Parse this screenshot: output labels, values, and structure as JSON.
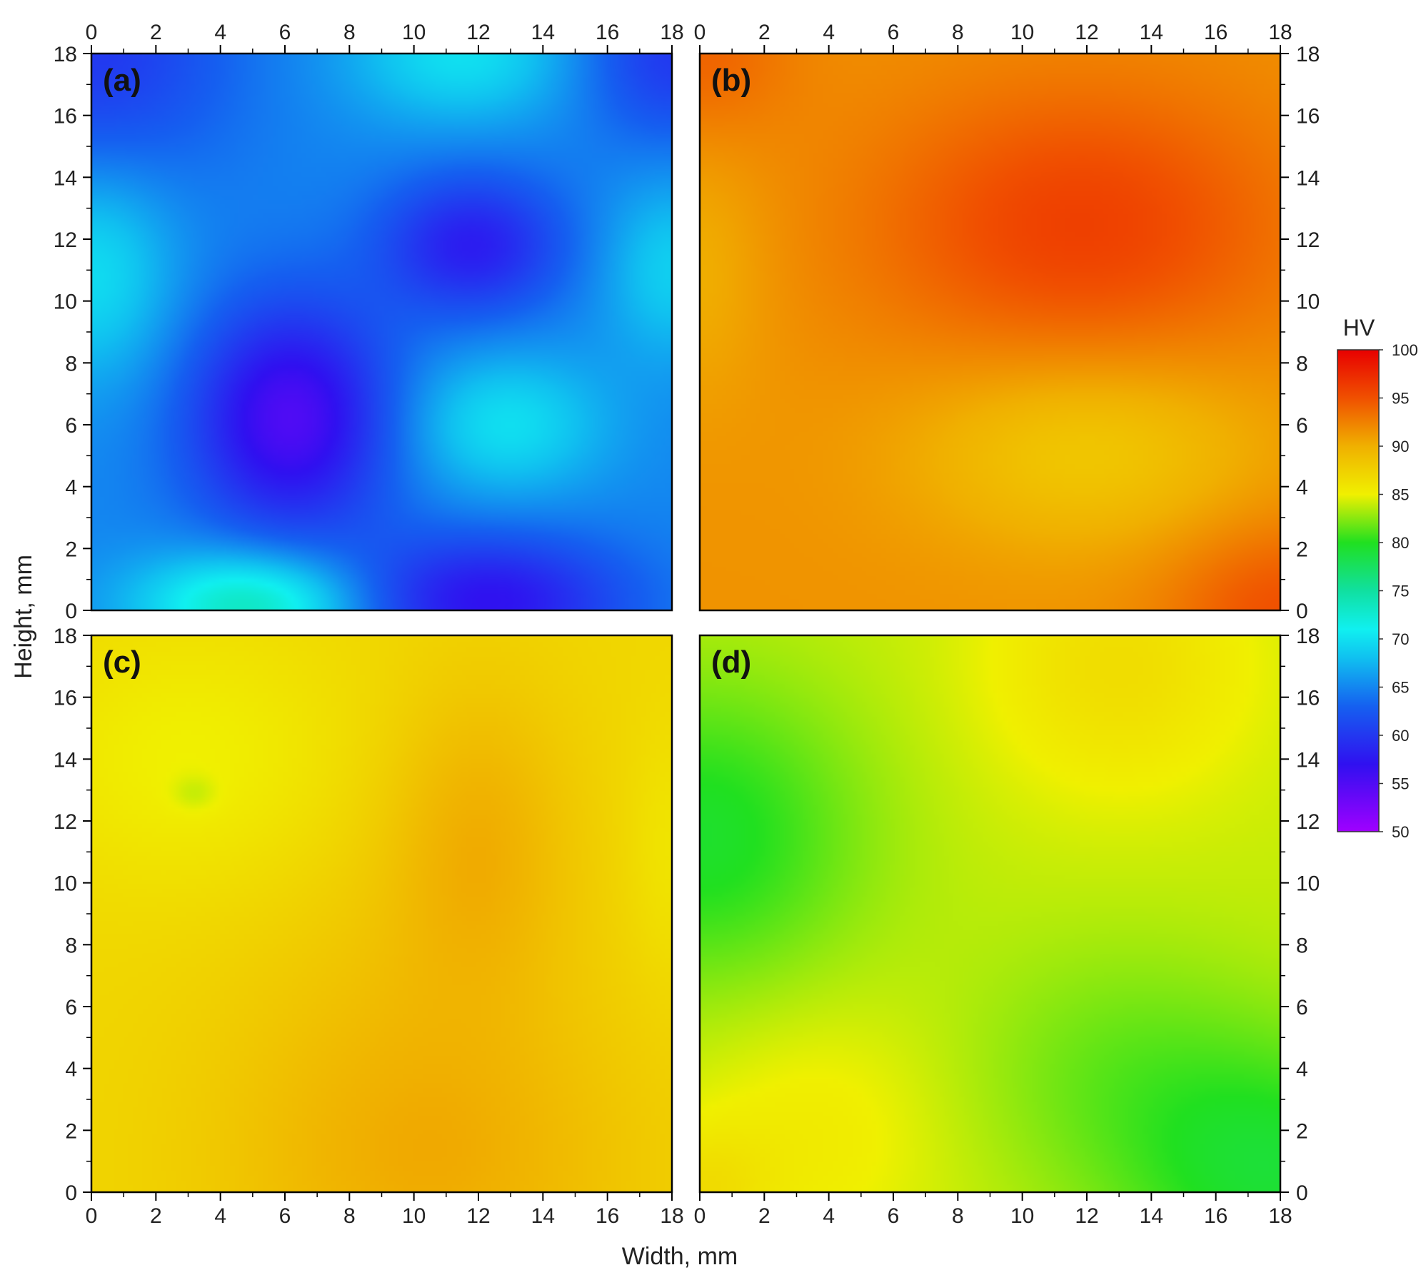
{
  "chart_data": {
    "type": "heatmap",
    "xlabel": "Width, mm",
    "ylabel": "Height, mm",
    "xlim": [
      0,
      18
    ],
    "ylim": [
      0,
      18
    ],
    "x_ticks": [
      0,
      2,
      4,
      6,
      8,
      10,
      12,
      14,
      16,
      18
    ],
    "y_ticks": [
      0,
      2,
      4,
      6,
      8,
      10,
      12,
      14,
      16,
      18
    ],
    "colorbar": {
      "title": "HV",
      "range": [
        50,
        100
      ],
      "ticks": [
        50,
        55,
        60,
        65,
        70,
        75,
        80,
        85,
        90,
        95,
        100
      ],
      "colors": [
        {
          "value": 50,
          "color": "#a000ff"
        },
        {
          "value": 57,
          "color": "#3010f0"
        },
        {
          "value": 63,
          "color": "#1560f0"
        },
        {
          "value": 68,
          "color": "#10c0f0"
        },
        {
          "value": 71,
          "color": "#10f0f0"
        },
        {
          "value": 75,
          "color": "#10e0a0"
        },
        {
          "value": 80,
          "color": "#20e020"
        },
        {
          "value": 85,
          "color": "#f0f000"
        },
        {
          "value": 90,
          "color": "#f0b000"
        },
        {
          "value": 95,
          "color": "#f05000"
        },
        {
          "value": 100,
          "color": "#e80000"
        }
      ]
    },
    "panels": [
      {
        "label": "(a)",
        "base": 65,
        "features": [
          {
            "x": 6.2,
            "y": 6.2,
            "amp": -10,
            "sx": 2.2,
            "sy": 2.6
          },
          {
            "x": 11.8,
            "y": 11.8,
            "amp": -7,
            "sx": 2.0,
            "sy": 1.6
          },
          {
            "x": 12.2,
            "y": 0.3,
            "amp": -8,
            "sx": 3.0,
            "sy": 1.5
          },
          {
            "x": 0,
            "y": 18,
            "amp": -5,
            "sx": 3.0,
            "sy": 3.0
          },
          {
            "x": 18,
            "y": 18,
            "amp": -5,
            "sx": 2.0,
            "sy": 2.0
          },
          {
            "x": 5,
            "y": 0.2,
            "amp": 9,
            "sx": 2.5,
            "sy": 1.2
          },
          {
            "x": 12.8,
            "y": 6.0,
            "amp": 5,
            "sx": 2.2,
            "sy": 1.6
          },
          {
            "x": 11.5,
            "y": 18,
            "amp": 5,
            "sx": 2.5,
            "sy": 1.6
          },
          {
            "x": 0,
            "y": 11,
            "amp": 5,
            "sx": 1.8,
            "sy": 2.5
          },
          {
            "x": 18,
            "y": 11,
            "amp": 4,
            "sx": 1.5,
            "sy": 2.0
          }
        ]
      },
      {
        "label": "(b)",
        "base": 91.5,
        "features": [
          {
            "x": 11.8,
            "y": 12.4,
            "amp": 4.5,
            "sx": 4.5,
            "sy": 3.2
          },
          {
            "x": 12,
            "y": 5.2,
            "amp": -3.5,
            "sx": 3.8,
            "sy": 2.2
          },
          {
            "x": 18,
            "y": 0,
            "amp": 3.5,
            "sx": 2.5,
            "sy": 2.0
          },
          {
            "x": 0,
            "y": 18,
            "amp": 2.5,
            "sx": 2.0,
            "sy": 2.0
          },
          {
            "x": 0,
            "y": 11,
            "amp": -1.5,
            "sx": 1.5,
            "sy": 3.0
          }
        ]
      },
      {
        "label": "(c)",
        "base": 87,
        "features": [
          {
            "x": 12,
            "y": 11.5,
            "amp": 2.8,
            "sx": 2.0,
            "sy": 3.5
          },
          {
            "x": 10.5,
            "y": 0.5,
            "amp": 2.8,
            "sx": 4.5,
            "sy": 3.5
          },
          {
            "x": 10,
            "y": 6,
            "amp": 1.2,
            "sx": 4.0,
            "sy": 4.0
          },
          {
            "x": 3,
            "y": 14,
            "amp": -2.0,
            "sx": 3.5,
            "sy": 3.0
          },
          {
            "x": 3.2,
            "y": 12.9,
            "amp": -1.2,
            "sx": 0.5,
            "sy": 0.4
          },
          {
            "x": 18,
            "y": 11,
            "amp": -1.2,
            "sx": 1.0,
            "sy": 3.0
          }
        ]
      },
      {
        "label": "(d)",
        "base": 84,
        "features": [
          {
            "x": 0,
            "y": 11.5,
            "amp": -4.5,
            "sx": 3.5,
            "sy": 3.5
          },
          {
            "x": 18,
            "y": 0.5,
            "amp": -4.5,
            "sx": 3.5,
            "sy": 3.0
          },
          {
            "x": 13,
            "y": 4,
            "amp": -2.0,
            "sx": 3.5,
            "sy": 3.0
          },
          {
            "x": 3.5,
            "y": 2,
            "amp": 1.5,
            "sx": 3.0,
            "sy": 3.0
          },
          {
            "x": 13,
            "y": 17,
            "amp": 2.5,
            "sx": 3.0,
            "sy": 3.0
          },
          {
            "x": 0,
            "y": 0,
            "amp": 2.0,
            "sx": 1.5,
            "sy": 1.5
          }
        ]
      }
    ]
  }
}
